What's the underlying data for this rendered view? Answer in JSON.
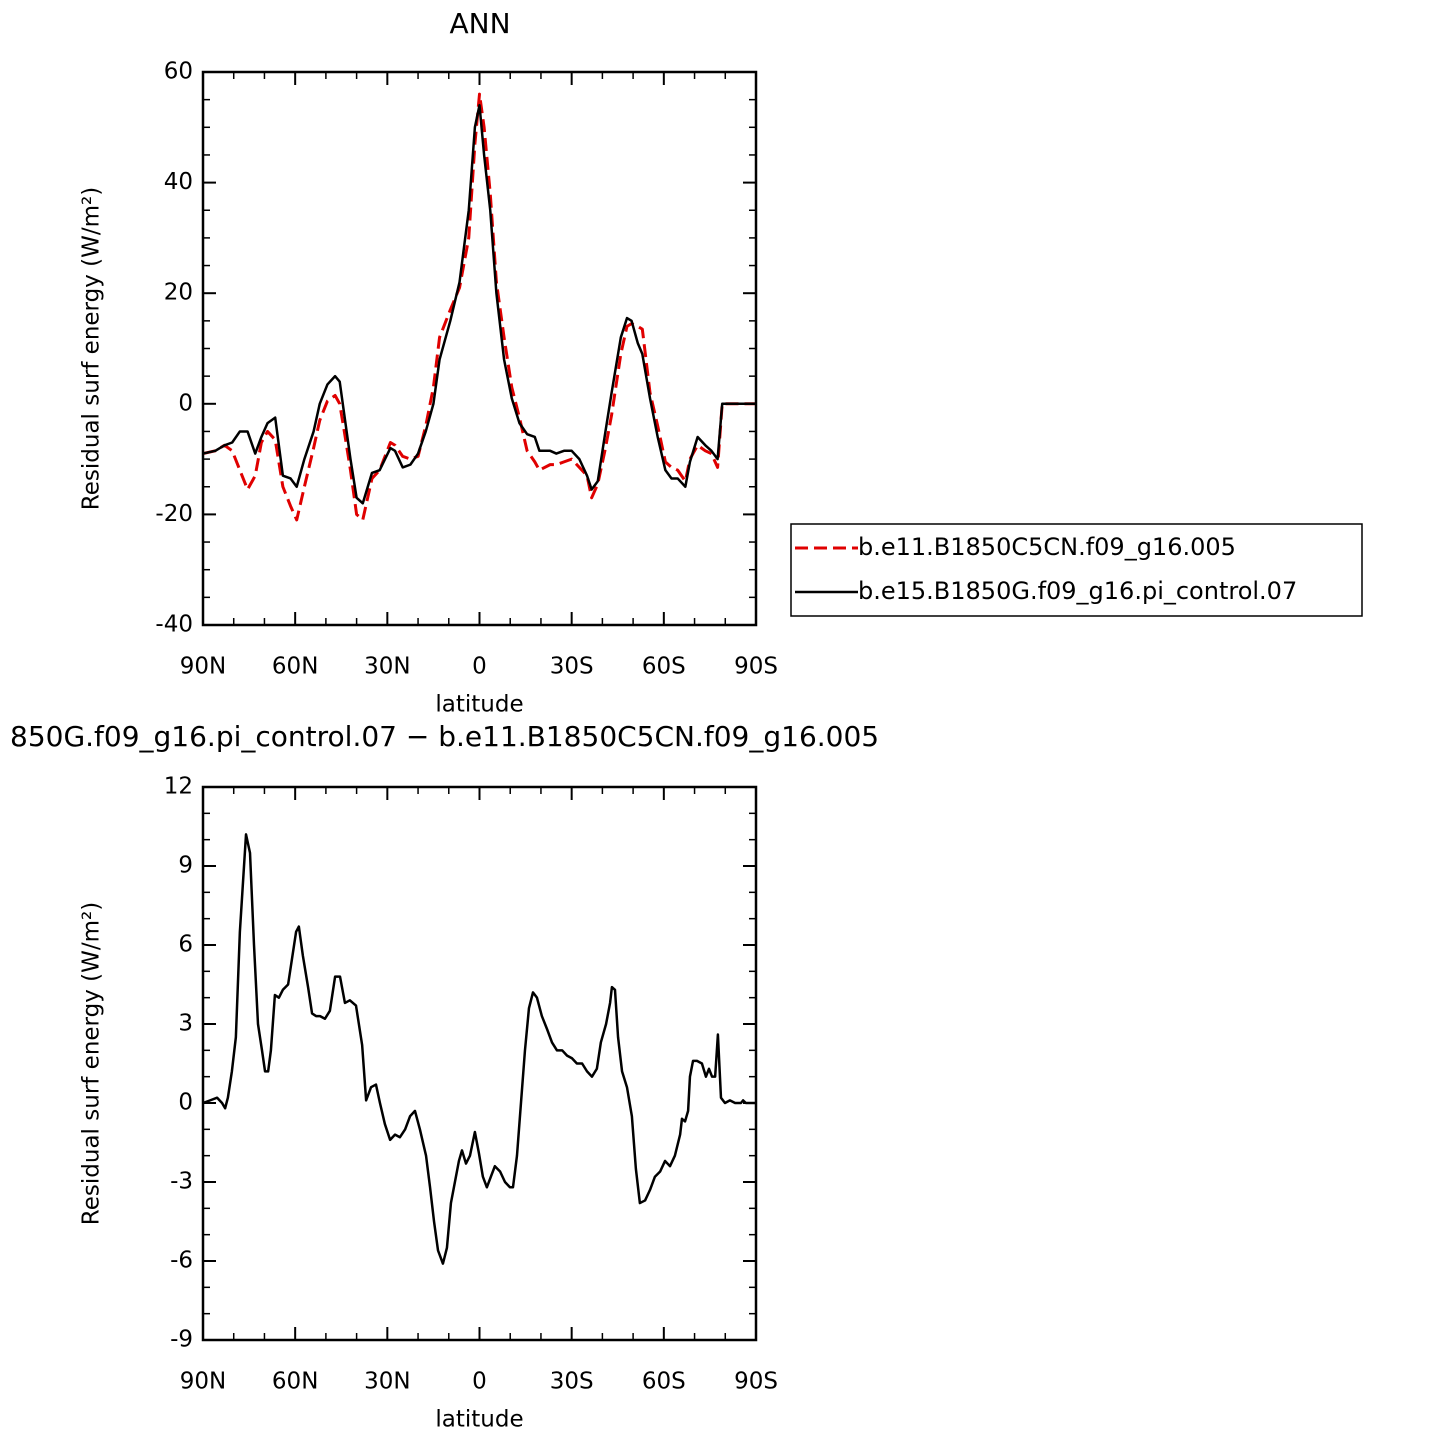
{
  "chart_data": [
    {
      "type": "line",
      "title": "ANN",
      "xlabel": "latitude",
      "ylabel": "Residual surf energy (W/m²)",
      "xlim": [
        90,
        -90
      ],
      "xticks": [
        {
          "value": 90,
          "label": "90N"
        },
        {
          "value": 60,
          "label": "60N"
        },
        {
          "value": 30,
          "label": "30N"
        },
        0,
        {
          "value": -30,
          "label": "30S"
        },
        {
          "value": -60,
          "label": "60S"
        },
        {
          "value": -90,
          "label": "90S"
        }
      ],
      "xminorticks": [
        80,
        70,
        50,
        40,
        20,
        10,
        -10,
        -20,
        -40,
        -50,
        -70,
        -80
      ],
      "ylim": [
        -40,
        60
      ],
      "yticks": [
        60,
        40,
        20,
        0,
        -20,
        -40
      ],
      "yminorticks": [
        55,
        50,
        45,
        35,
        30,
        25,
        15,
        10,
        5,
        -5,
        -10,
        -15,
        -25,
        -30,
        -35
      ],
      "legend": "outside-right",
      "x": [
        90,
        86,
        83,
        80.5,
        78,
        75.5,
        73,
        71,
        69,
        66.5,
        64,
        61.5,
        59.5,
        57,
        54,
        52,
        49.5,
        47,
        45.5,
        44,
        42,
        40,
        38,
        35,
        32.5,
        29,
        27.5,
        25,
        22.5,
        20,
        17.5,
        15,
        13,
        9.5,
        6.5,
        3.5,
        1.5,
        0,
        -1.5,
        -3.5,
        -5.5,
        -8,
        -10.5,
        -13,
        -15.5,
        -18,
        -19.5,
        -23,
        -25,
        -27.5,
        -30,
        -32.5,
        -35,
        -36.5,
        -38.5,
        -41,
        -43,
        -46,
        -48,
        -49.5,
        -51.5,
        -53,
        -55.5,
        -58,
        -60.5,
        -62.5,
        -64.5,
        -67,
        -68.5,
        -71,
        -73.5,
        -75.5,
        -77.5,
        -79,
        -81.5,
        -85,
        -90
      ],
      "series": [
        {
          "name": "b.e11.B1850C5CN.f09_g16.005",
          "color": "#e00000",
          "dash": "dashed",
          "values": [
            -9,
            -8.5,
            -7.5,
            -8.5,
            -12,
            -15.5,
            -13,
            -7,
            -5,
            -6.5,
            -15,
            -18.5,
            -21,
            -15,
            -8,
            -3,
            0.5,
            1.5,
            0,
            -5,
            -12,
            -20,
            -21,
            -13.5,
            -12,
            -7,
            -7.5,
            -9.5,
            -10,
            -9.5,
            -4,
            3,
            12,
            17,
            21,
            30,
            47,
            56,
            50,
            38,
            22,
            12,
            3,
            -2.5,
            -8.5,
            -10.5,
            -12,
            -11,
            -11,
            -10.5,
            -10,
            -11.5,
            -13,
            -17,
            -14.5,
            -8,
            -2,
            9,
            14,
            14.5,
            14,
            13.5,
            2,
            -4,
            -10.5,
            -11.5,
            -12,
            -14,
            -10,
            -7.5,
            -8.5,
            -9,
            -11.5,
            0,
            0,
            0,
            0
          ]
        },
        {
          "name": "b.e15.B1850G.f09_g16.pi_control.07",
          "color": "#000000",
          "dash": "solid",
          "values": [
            -9,
            -8.5,
            -7.5,
            -7,
            -5,
            -5,
            -9,
            -6,
            -3.5,
            -2.5,
            -13,
            -13.5,
            -15,
            -10,
            -5,
            0,
            3.5,
            5,
            4,
            -2,
            -10,
            -17,
            -18,
            -12.5,
            -12,
            -8,
            -8.5,
            -11.5,
            -11,
            -9,
            -5,
            0,
            8,
            15,
            22,
            35,
            50,
            54,
            45,
            35,
            20,
            8,
            1,
            -3.5,
            -5.5,
            -6,
            -8.5,
            -8.5,
            -9,
            -8.5,
            -8.5,
            -10,
            -13,
            -15.5,
            -14,
            -5,
            2,
            12,
            15.5,
            15,
            11,
            9,
            1,
            -6,
            -12,
            -13.5,
            -13.5,
            -15,
            -10.5,
            -6,
            -7.5,
            -8.5,
            -10,
            0,
            0,
            0,
            0
          ]
        }
      ]
    },
    {
      "type": "line",
      "title": "850G.f09_g16.pi_control.07 − b.e11.B1850C5CN.f09_g16.005",
      "xlabel": "latitude",
      "ylabel": "Residual surf energy (W/m²)",
      "xlim": [
        90,
        -90
      ],
      "xticks": [
        {
          "value": 90,
          "label": "90N"
        },
        {
          "value": 60,
          "label": "60N"
        },
        {
          "value": 30,
          "label": "30N"
        },
        0,
        {
          "value": -30,
          "label": "30S"
        },
        {
          "value": -60,
          "label": "60S"
        },
        {
          "value": -90,
          "label": "90S"
        }
      ],
      "xminorticks": [
        80,
        70,
        50,
        40,
        20,
        10,
        -10,
        -20,
        -40,
        -50,
        -70,
        -80
      ],
      "ylim": [
        -9,
        12
      ],
      "yticks": [
        12,
        9,
        6,
        3,
        0,
        -3,
        -6,
        -9
      ],
      "yminorticks": [
        11,
        10,
        8,
        7,
        5,
        4,
        2,
        1,
        -1,
        -2,
        -4,
        -5,
        -7,
        -8
      ],
      "color": "#000000",
      "x": [
        90,
        87.7,
        85.4,
        83.8,
        82.8,
        81.9,
        80.6,
        79.3,
        78.0,
        76.0,
        74.7,
        73.4,
        72.1,
        70.8,
        69.8,
        68.8,
        67.9,
        66.6,
        65.3,
        64.0,
        62.3,
        61.0,
        59.7,
        58.8,
        57.5,
        55.8,
        54.5,
        53.2,
        51.9,
        50.3,
        48.7,
        47.0,
        45.4,
        43.8,
        42.2,
        40.2,
        38.2,
        36.9,
        35.3,
        33.7,
        32.4,
        30.8,
        29.1,
        27.5,
        25.9,
        24.2,
        22.6,
        21.0,
        19.4,
        17.4,
        16.1,
        14.8,
        13.5,
        11.9,
        10.6,
        9.3,
        8.0,
        6.7,
        5.7,
        4.4,
        3.1,
        1.5,
        0.2,
        -1.1,
        -2.4,
        -3.7,
        -5.0,
        -6.7,
        -8.3,
        -9.9,
        -10.9,
        -12.2,
        -13.5,
        -14.8,
        -16.1,
        -17.4,
        -18.7,
        -20.3,
        -22.0,
        -23.6,
        -25.2,
        -26.9,
        -28.5,
        -30.1,
        -31.7,
        -33.4,
        -35.0,
        -36.6,
        -38.2,
        -39.5,
        -41.2,
        -42.5,
        -43.1,
        -44.1,
        -45.1,
        -46.4,
        -48.0,
        -49.6,
        -50.9,
        -52.2,
        -53.9,
        -55.5,
        -57.1,
        -58.8,
        -60.4,
        -62.0,
        -63.6,
        -65.3,
        -65.9,
        -66.9,
        -67.9,
        -68.5,
        -69.5,
        -70.8,
        -72.4,
        -73.7,
        -74.7,
        -75.7,
        -76.7,
        -77.6,
        -78.6,
        -79.9,
        -81.5,
        -83.2,
        -85.1,
        -85.8,
        -86.7,
        -90
      ],
      "values": [
        0,
        0.1,
        0.2,
        0,
        -0.2,
        0.2,
        1.2,
        2.5,
        6.5,
        10.2,
        9.5,
        6,
        3,
        2,
        1.2,
        1.2,
        2,
        4.1,
        4,
        4.3,
        4.5,
        5.5,
        6.5,
        6.7,
        5.6,
        4.4,
        3.4,
        3.3,
        3.3,
        3.2,
        3.5,
        4.8,
        4.8,
        3.8,
        3.9,
        3.7,
        2.2,
        0.1,
        0.6,
        0.7,
        0,
        -0.8,
        -1.4,
        -1.2,
        -1.3,
        -1.0,
        -0.5,
        -0.3,
        -1,
        -2,
        -3.2,
        -4.5,
        -5.6,
        -6.1,
        -5.5,
        -3.8,
        -3,
        -2.2,
        -1.8,
        -2.3,
        -2,
        -1.1,
        -1.9,
        -2.8,
        -3.2,
        -2.8,
        -2.4,
        -2.6,
        -3.0,
        -3.2,
        -3.2,
        -2.0,
        0,
        2,
        3.6,
        4.2,
        4.0,
        3.3,
        2.8,
        2.3,
        2.0,
        2.0,
        1.8,
        1.7,
        1.5,
        1.5,
        1.2,
        1.0,
        1.3,
        2.3,
        3.0,
        3.8,
        4.4,
        4.3,
        2.5,
        1.2,
        0.6,
        -0.5,
        -2.5,
        -3.8,
        -3.7,
        -3.3,
        -2.8,
        -2.6,
        -2.2,
        -2.4,
        -2.0,
        -1.2,
        -0.6,
        -0.7,
        -0.3,
        1,
        1.6,
        1.6,
        1.5,
        1.0,
        1.3,
        1.0,
        1.0,
        2.6,
        0.2,
        0,
        0.1,
        0,
        0,
        0.1,
        0,
        0
      ]
    }
  ]
}
